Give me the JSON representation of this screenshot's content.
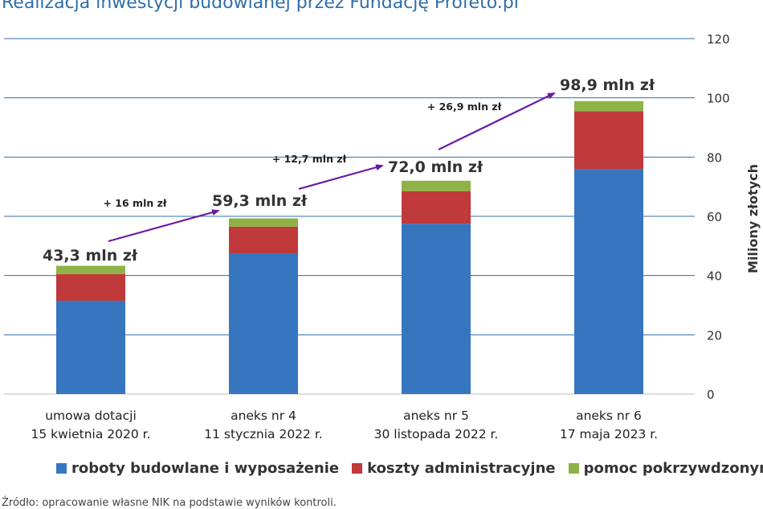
{
  "title": "Realizacja inwestycji budowlanej przez Fundację Profeto.pl",
  "source": "Źródło: opracowanie własne NIK na podstawie wyników kontroli.",
  "chart_data": {
    "type": "bar",
    "stacked": true,
    "categories": [
      [
        "umowa dotacji",
        "15 kwietnia 2020 r."
      ],
      [
        "aneks nr 4",
        "11 stycznia 2022 r."
      ],
      [
        "aneks nr 5",
        "30 listopada 2022 r."
      ],
      [
        "aneks nr 6",
        "17 maja 2023 r."
      ]
    ],
    "series": [
      {
        "name": "roboty budowlane i wyposażenie",
        "color": "#3676bf",
        "values": [
          31.5,
          47.5,
          57.5,
          76.0
        ]
      },
      {
        "name": "koszty administracyjne",
        "color": "#c0393b",
        "values": [
          9.0,
          9.0,
          11.0,
          19.5
        ]
      },
      {
        "name": "pomoc pokrzywdzonym",
        "color": "#8db347",
        "values": [
          2.8,
          2.8,
          3.5,
          3.4
        ]
      }
    ],
    "totals": [
      "43,3 mln zł",
      "59,3 mln zł",
      "72,0  mln zł",
      "98,9 mln zł"
    ],
    "increments": [
      "+ 16 mln zł",
      "+ 12,7 mln zł",
      "+ 26,9 mln zł"
    ],
    "ylabel": "Miliony złotych",
    "ylim": [
      0,
      120
    ],
    "yticks": [
      0,
      20,
      40,
      60,
      80,
      100,
      120
    ],
    "y_axis_side": "right",
    "grid": true,
    "legend_position": "bottom",
    "arrow_color": "#6a1aa3",
    "grid_color": "#2f6ea9"
  }
}
